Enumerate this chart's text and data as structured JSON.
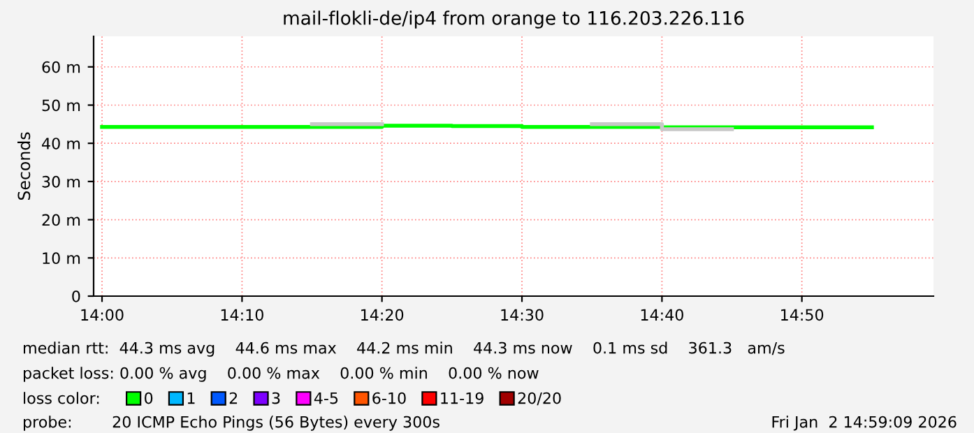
{
  "chart_data": {
    "type": "step",
    "title": "mail-flokli-de/ip4 from orange to 116.203.226.116",
    "ylabel": "Seconds",
    "x": [
      14.0,
      14.0833,
      14.1667,
      14.25,
      14.3333,
      14.4167,
      14.5,
      14.5833,
      14.6667,
      14.75,
      14.8333,
      14.9167
    ],
    "series": [
      {
        "name": "0",
        "color": "#00ff00",
        "values": [
          44.3,
          44.3,
          44.3,
          44.3,
          44.6,
          44.5,
          44.3,
          44.3,
          44.2,
          44.2,
          44.2,
          44.2
        ]
      },
      {
        "type": "line",
        "color": "#c8c8c8",
        "x": [
          14.25,
          14.3333,
          14.4,
          14.5833,
          14.6667,
          14.6667,
          14.75
        ],
        "values": [
          45.0,
          45.0,
          null,
          45.0,
          45.0,
          43.7,
          43.7
        ]
      },
      {
        "name": "1",
        "color": "#00b8ff",
        "values": [
          null,
          null,
          null,
          null,
          null,
          null,
          null,
          null,
          null,
          null,
          null,
          null
        ]
      },
      {
        "name": "2",
        "color": "#0059ff",
        "values": [
          null,
          null,
          null,
          null,
          null,
          null,
          null,
          null,
          null,
          null,
          null,
          null
        ]
      },
      {
        "name": "3",
        "color": "#7e00ff",
        "values": [
          null,
          null,
          null,
          null,
          null,
          null,
          null,
          null,
          null,
          null,
          null,
          null
        ]
      },
      {
        "name": "4-5",
        "color": "#ff00ff",
        "values": [
          null,
          null,
          null,
          null,
          null,
          null,
          null,
          null,
          null,
          null,
          null,
          null
        ]
      },
      {
        "name": "6-10",
        "color": "#ff5500",
        "values": [
          null,
          null,
          null,
          null,
          null,
          null,
          null,
          null,
          null,
          null,
          null,
          null
        ]
      },
      {
        "name": "11-19",
        "color": "#ff0000",
        "values": [
          null,
          null,
          null,
          null,
          null,
          null,
          null,
          null,
          null,
          null,
          null,
          null
        ]
      },
      {
        "name": "20/20",
        "color": "#a10000",
        "values": [
          null,
          null,
          null,
          null,
          null,
          null,
          null,
          null,
          null,
          null,
          null,
          null
        ]
      }
    ],
    "legend_title": "loss color:",
    "legend": "bottom",
    "xlim": [
      13.99,
      14.99
    ],
    "xticks": [
      {
        "value": 14.0,
        "label": "14:00"
      },
      {
        "value": 14.1667,
        "label": "14:10"
      },
      {
        "value": 14.3333,
        "label": "14:20"
      },
      {
        "value": 14.5,
        "label": "14:30"
      },
      {
        "value": 14.6667,
        "label": "14:40"
      },
      {
        "value": 14.8333,
        "label": "14:50"
      }
    ],
    "ylim": [
      0,
      68
    ],
    "yticks": [
      0,
      {
        "value": 10,
        "label": "10 m"
      },
      {
        "value": 20,
        "label": "20 m"
      },
      {
        "value": 30,
        "label": "30 m"
      },
      {
        "value": 40,
        "label": "40 m"
      },
      {
        "value": 50,
        "label": "50 m"
      },
      {
        "value": 60,
        "label": "60 m"
      }
    ],
    "grid": true,
    "annotations": [
      "median rtt:  44.3 ms avg    44.6 ms max    44.2 ms min    44.3 ms now    0.1 ms sd    361.3   am/s",
      "packet loss: 0.00 % avg    0.00 % max    0.00 % min    0.00 % now",
      "probe:        20 ICMP Echo Pings (56 Bytes) every 300s",
      "Fri Jan  2 14:59:09 2026"
    ]
  }
}
